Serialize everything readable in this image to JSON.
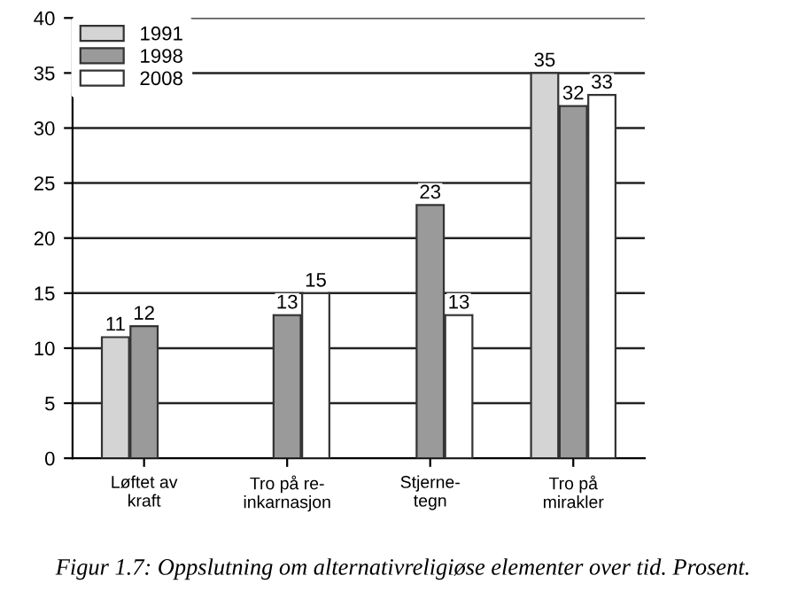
{
  "chart_data": {
    "type": "bar",
    "categories": [
      "Løftet av\nkraft",
      "Tro på re-\ninkarnasjon",
      "Stjerne-\ntegn",
      "Tro på\nmirakler"
    ],
    "series": [
      {
        "name": "1991",
        "color": "#d4d4d4",
        "values": [
          11,
          null,
          null,
          35
        ]
      },
      {
        "name": "1998",
        "color": "#9a9a9a",
        "values": [
          12,
          13,
          23,
          32
        ]
      },
      {
        "name": "2008",
        "color": "#ffffff",
        "values": [
          null,
          15,
          13,
          33
        ]
      }
    ],
    "ylim": [
      0,
      40
    ],
    "yticks": [
      0,
      5,
      10,
      15,
      20,
      25,
      30,
      35,
      40
    ],
    "grid": "y",
    "legend": "top left",
    "data_labels": true,
    "annotations": [
      "Figur 1.7: Oppslutning om alternativreligiøse elementer over tid. Prosent."
    ]
  }
}
